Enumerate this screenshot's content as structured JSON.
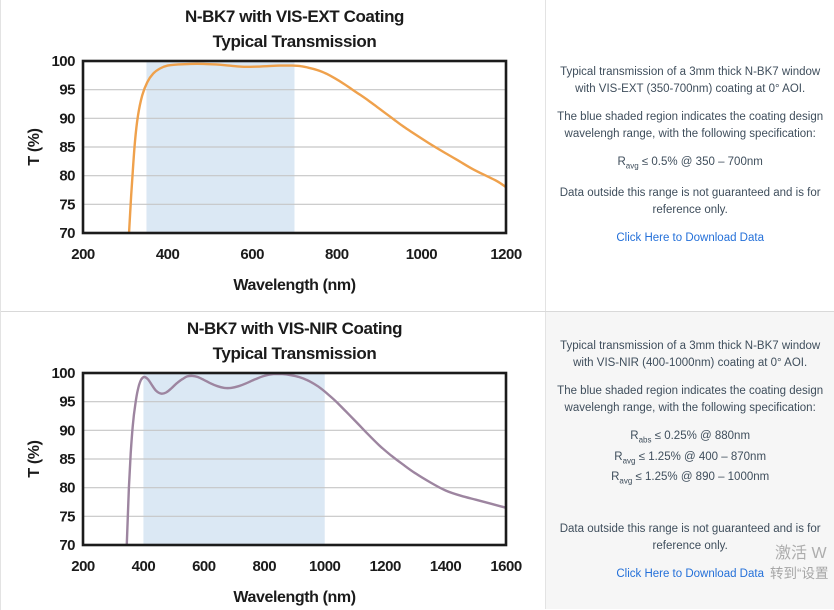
{
  "colors": {
    "text": "#3f4e5c",
    "link": "#2470d9",
    "grid": "#c6c6c6",
    "axis": "#1b1b1b",
    "shade": "#dbe8f4",
    "orange": "#efa14c",
    "purple": "#9d85a0",
    "panel_alt_bg": "#f6f6f6"
  },
  "chart_data": [
    {
      "type": "line",
      "title": "N-BK7 with VIS-EXT Coating",
      "subtitle": "Typical Transmission",
      "xlabel": "Wavelength (nm)",
      "ylabel": "T (%)",
      "xlim": [
        200,
        1200
      ],
      "ylim": [
        70,
        100
      ],
      "x_ticks": [
        200,
        400,
        600,
        800,
        1000,
        1200
      ],
      "y_ticks": [
        70,
        75,
        80,
        85,
        90,
        95,
        100
      ],
      "grid": "horizontal-only",
      "legend": "none",
      "design_range": [
        350,
        700
      ],
      "line_color_key": "orange",
      "series": [
        {
          "name": "VIS-EXT transmission",
          "x": [
            306,
            311,
            317,
            323,
            330,
            340,
            352,
            366,
            382,
            400,
            425,
            455,
            485,
            515,
            545,
            575,
            605,
            635,
            665,
            695,
            715,
            735,
            755,
            775,
            795,
            815,
            835,
            855,
            875,
            895,
            915,
            935,
            955,
            975,
            1000,
            1030,
            1060,
            1090,
            1120,
            1155,
            1180,
            1200
          ],
          "y": [
            66,
            73,
            80,
            86,
            90.5,
            94,
            96.3,
            97.8,
            98.7,
            99.2,
            99.4,
            99.5,
            99.5,
            99.4,
            99.2,
            99.0,
            99.0,
            99.1,
            99.2,
            99.2,
            99.1,
            98.8,
            98.4,
            97.8,
            97.0,
            96.1,
            95.1,
            94.1,
            93.1,
            92.0,
            90.9,
            89.8,
            88.7,
            87.7,
            86.5,
            85.1,
            83.8,
            82.5,
            81.2,
            79.9,
            79.0,
            78.0
          ]
        }
      ]
    },
    {
      "type": "line",
      "title": "N-BK7 with VIS-NIR Coating",
      "subtitle": "Typical Transmission",
      "xlabel": "Wavelength (nm)",
      "ylabel": "T (%)",
      "xlim": [
        200,
        1600
      ],
      "ylim": [
        70,
        100
      ],
      "x_ticks": [
        200,
        400,
        600,
        800,
        1000,
        1200,
        1400,
        1600
      ],
      "y_ticks": [
        70,
        75,
        80,
        85,
        90,
        95,
        100
      ],
      "grid": "horizontal-only",
      "legend": "none",
      "design_range": [
        400,
        1000
      ],
      "line_color_key": "purple",
      "series": [
        {
          "name": "VIS-NIR transmission",
          "x": [
            342,
            347,
            352,
            358,
            365,
            373,
            382,
            392,
            403,
            415,
            428,
            442,
            458,
            475,
            492,
            510,
            528,
            545,
            562,
            580,
            600,
            622,
            645,
            668,
            690,
            715,
            740,
            770,
            800,
            830,
            860,
            890,
            915,
            940,
            965,
            990,
            1015,
            1040,
            1070,
            1100,
            1140,
            1180,
            1220,
            1260,
            1300,
            1350,
            1400,
            1450,
            1500,
            1550,
            1600
          ],
          "y": [
            66,
            73,
            80,
            86,
            91,
            94.5,
            97.2,
            98.8,
            99.3,
            98.9,
            97.9,
            96.9,
            96.4,
            96.6,
            97.3,
            98.2,
            98.9,
            99.4,
            99.5,
            99.3,
            98.8,
            98.2,
            97.7,
            97.4,
            97.4,
            97.7,
            98.2,
            98.9,
            99.5,
            99.8,
            99.8,
            99.6,
            99.3,
            98.8,
            98.1,
            97.2,
            96.1,
            94.9,
            93.3,
            91.7,
            89.5,
            87.4,
            85.6,
            84.0,
            82.5,
            80.9,
            79.5,
            78.6,
            77.9,
            77.2,
            76.5
          ]
        }
      ]
    }
  ],
  "panels": [
    {
      "desc": "Typical transmission of a 3mm thick N-BK7 window with VIS-EXT (350-700nm) coating at 0° AOI.",
      "shaded": "The blue shaded region indicates the coating design wavelengh range, with the following specification:",
      "specs": [
        {
          "base": "R",
          "sub": "avg",
          "rest": " ≤ 0.5% @ 350 – 700nm"
        }
      ],
      "note": "Data outside this range is not guaranteed and is for reference only.",
      "link": "Click Here to Download Data"
    },
    {
      "desc": "Typical transmission of a 3mm thick N-BK7 window with VIS-NIR (400-1000nm) coating at 0° AOI.",
      "shaded": "The blue shaded region indicates the coating design wavelengh range, with the following specification:",
      "specs": [
        {
          "base": "R",
          "sub": "abs",
          "rest": " ≤ 0.25% @ 880nm"
        },
        {
          "base": "R",
          "sub": "avg",
          "rest": " ≤ 1.25% @ 400 – 870nm"
        },
        {
          "base": "R",
          "sub": "avg",
          "rest": " ≤ 1.25% @ 890 – 1000nm"
        }
      ],
      "note": "Data outside this range is not guaranteed and is for reference only.",
      "link": "Click Here to Download Data"
    }
  ],
  "watermark": {
    "line1": "激活 W",
    "line2": "转到“设置"
  }
}
